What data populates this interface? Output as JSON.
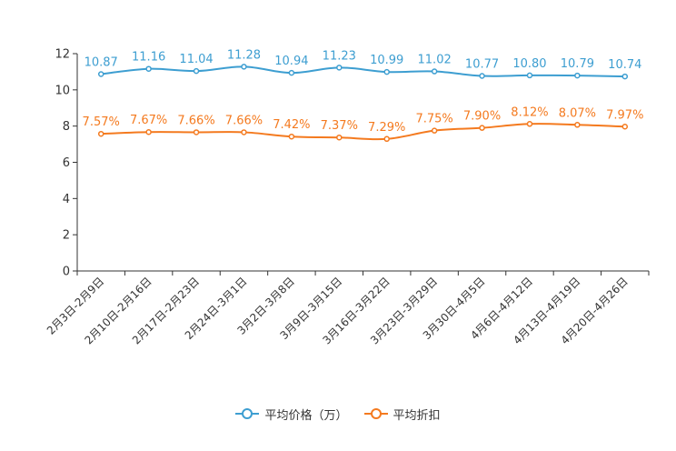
{
  "chart_data": {
    "type": "line",
    "title": "",
    "xlabel": "",
    "ylabel": "",
    "ylim": [
      0,
      12
    ],
    "yticks": [
      0,
      2,
      4,
      6,
      8,
      10,
      12
    ],
    "categories": [
      "2月3日-2月9日",
      "2月10日-2月16日",
      "2月17日-2月23日",
      "2月24日-3月1日",
      "3月2日-3月8日",
      "3月9日-3月15日",
      "3月16日-3月22日",
      "3月23日-3月29日",
      "3月30日-4月5日",
      "4月6日-4月12日",
      "4月13日-4月19日",
      "4月20日-4月26日"
    ],
    "series": [
      {
        "name": "平均价格（万）",
        "color": "#3d9ed1",
        "values": [
          10.87,
          11.16,
          11.04,
          11.28,
          10.94,
          11.23,
          10.99,
          11.02,
          10.77,
          10.8,
          10.79,
          10.74
        ],
        "labels": [
          "10.87",
          "11.16",
          "11.04",
          "11.28",
          "10.94",
          "11.23",
          "10.99",
          "11.02",
          "10.77",
          "10.80",
          "10.79",
          "10.74"
        ]
      },
      {
        "name": "平均折扣",
        "color": "#f47a1f",
        "values": [
          7.57,
          7.67,
          7.66,
          7.66,
          7.42,
          7.37,
          7.29,
          7.75,
          7.9,
          8.12,
          8.07,
          7.97
        ],
        "labels": [
          "7.57%",
          "7.67%",
          "7.66%",
          "7.66%",
          "7.42%",
          "7.37%",
          "7.29%",
          "7.75%",
          "7.90%",
          "8.12%",
          "8.07%",
          "7.97%"
        ]
      }
    ],
    "legend_position": "bottom-center",
    "grid": false
  }
}
